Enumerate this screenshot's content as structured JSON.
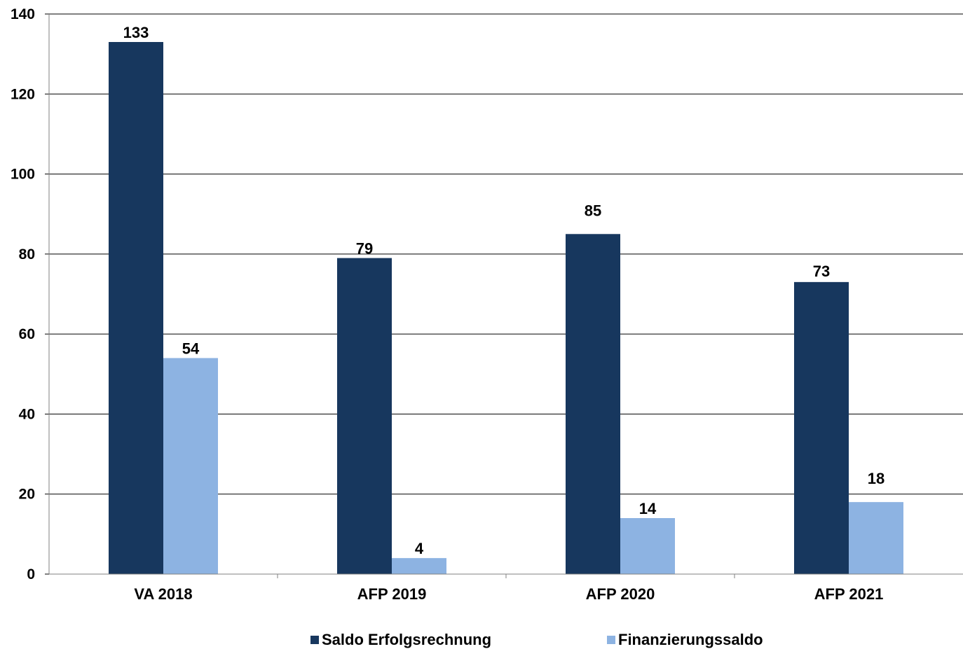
{
  "chart_data": {
    "type": "bar",
    "title": "",
    "xlabel": "",
    "ylabel": "",
    "categories": [
      "VA 2018",
      "AFP 2019",
      "AFP 2020",
      "AFP 2021"
    ],
    "series": [
      {
        "name": "Saldo Erfolgsrechnung",
        "values": [
          133,
          79,
          85,
          73
        ],
        "color": "#17375e",
        "labels": [
          "133",
          "79",
          "85",
          "73"
        ]
      },
      {
        "name": "Finanzierungssaldo",
        "values": [
          54,
          4,
          14,
          18
        ],
        "color": "#8db3e2",
        "labels": [
          "54",
          "4",
          "14",
          "18"
        ]
      }
    ],
    "ylim": [
      0,
      140
    ],
    "yticks": [
      0,
      20,
      40,
      60,
      80,
      100,
      120,
      140
    ],
    "grid": true,
    "legend_position": "bottom"
  }
}
